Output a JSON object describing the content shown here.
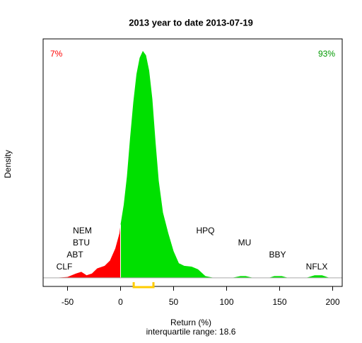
{
  "chart_data": {
    "type": "density",
    "title": "2013  year to date 2013-07-19",
    "xlabel": "Return (%)",
    "ylabel": "Density",
    "subtitle": "interquartile range: 18.6",
    "xlim": [
      -73,
      209
    ],
    "ylim": [
      -0.001,
      0.0278
    ],
    "xticks": [
      -50,
      0,
      50,
      100,
      150,
      200
    ],
    "series": [
      {
        "color": "#ff0000",
        "x": [
          -62,
          -50,
          -42,
          -37,
          -32,
          -27,
          -22,
          -15,
          -10,
          -5,
          -1,
          0
        ],
        "values": [
          0,
          0.0001,
          0.0005,
          0.0007,
          0.0003,
          0.0005,
          0.0011,
          0.0014,
          0.002,
          0.0034,
          0.0052,
          0.0062
        ]
      },
      {
        "color": "#00e000",
        "x": [
          0,
          3,
          6,
          9,
          12,
          15,
          18,
          21,
          24,
          27,
          30,
          33,
          36,
          40,
          45,
          50,
          55,
          60,
          67,
          73,
          80,
          88,
          105,
          113,
          118,
          125,
          140,
          145,
          152,
          158,
          175,
          183,
          190,
          197
        ],
        "values": [
          0.0062,
          0.0085,
          0.0118,
          0.0163,
          0.0204,
          0.0237,
          0.0256,
          0.0264,
          0.0259,
          0.0241,
          0.0208,
          0.0158,
          0.0113,
          0.0076,
          0.0052,
          0.0031,
          0.0017,
          0.0014,
          0.0013,
          0.001,
          0.0002,
          0,
          0,
          0.0002,
          0.0002,
          0,
          0,
          0.0002,
          0.0002,
          0,
          0,
          0.0003,
          0.0003,
          0
        ]
      }
    ],
    "annotations": [
      {
        "text": "CLF",
        "x": -53
      },
      {
        "text": "ABT",
        "x": -43
      },
      {
        "text": "BTU",
        "x": -37
      },
      {
        "text": "NEM",
        "x": -36
      },
      {
        "text": "HPQ",
        "x": 80
      },
      {
        "text": "MU",
        "x": 117
      },
      {
        "text": "BBY",
        "x": 148
      },
      {
        "text": "NFLX",
        "x": 185
      }
    ],
    "corner_labels": [
      {
        "text": "7%",
        "color": "#ff0000"
      },
      {
        "text": "93%",
        "color": "#009900"
      }
    ],
    "iqr": [
      12.4,
      31
    ],
    "iqr_color": "#ffcc00"
  }
}
